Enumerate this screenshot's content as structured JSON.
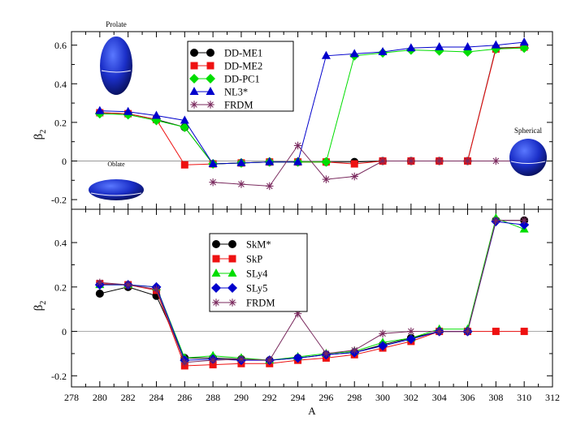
{
  "chart_data": [
    {
      "type": "line",
      "panel": "top",
      "ylabel_main": "β",
      "ylabel_sub": "2",
      "xlim": [
        278,
        312
      ],
      "ylim": [
        -0.25,
        0.67
      ],
      "yticks": [
        -0.2,
        0,
        0.2,
        0.4,
        0.6
      ],
      "ytick_labels": [
        "-0.2",
        "0",
        "0.2",
        "0.4",
        "0.6"
      ],
      "x": [
        280,
        282,
        284,
        286,
        288,
        290,
        292,
        294,
        296,
        298,
        300,
        302,
        304,
        306,
        308,
        310
      ],
      "series": [
        {
          "name": "DD-ME1",
          "color": "#000000",
          "marker": "circle",
          "values": [
            0.25,
            0.245,
            0.215,
            0.175,
            -0.015,
            -0.01,
            -0.005,
            -0.005,
            -0.005,
            -0.005,
            0,
            0,
            0,
            0,
            0.585,
            0.59
          ]
        },
        {
          "name": "DD-ME2",
          "color": "#ee1111",
          "marker": "square",
          "values": [
            0.25,
            0.245,
            0.215,
            -0.02,
            -0.015,
            -0.01,
            -0.005,
            -0.005,
            -0.005,
            -0.015,
            0,
            0,
            0,
            0,
            0.58,
            0.59
          ]
        },
        {
          "name": "DD-PC1",
          "color": "#00dd00",
          "marker": "diamond",
          "values": [
            0.245,
            0.24,
            0.21,
            0.175,
            -0.015,
            -0.01,
            -0.005,
            -0.005,
            -0.005,
            0.545,
            0.56,
            0.575,
            0.57,
            0.565,
            0.58,
            0.585
          ]
        },
        {
          "name": "NL3*",
          "color": "#0000cc",
          "marker": "triangle",
          "values": [
            0.26,
            0.255,
            0.235,
            0.21,
            -0.015,
            -0.01,
            -0.005,
            -0.005,
            0.545,
            0.555,
            0.565,
            0.585,
            0.59,
            0.59,
            0.6,
            0.615
          ]
        },
        {
          "name": "FRDM",
          "color": "#7a2a5e",
          "marker": "star",
          "x": [
            288,
            290,
            292,
            294,
            296,
            298,
            300,
            302,
            304,
            306,
            308,
            310
          ],
          "values": [
            -0.11,
            -0.12,
            -0.13,
            0.08,
            -0.095,
            -0.08,
            0,
            0,
            0,
            0,
            0,
            0
          ]
        }
      ],
      "annotations": {
        "prolate": "Prolate",
        "oblate": "Oblate",
        "spherical": "Spherical"
      }
    },
    {
      "type": "line",
      "panel": "bottom",
      "xlabel": "A",
      "ylabel_main": "β",
      "ylabel_sub": "2",
      "xlim": [
        278,
        312
      ],
      "ylim": [
        -0.25,
        0.55
      ],
      "xticks": [
        278,
        280,
        282,
        284,
        286,
        288,
        290,
        292,
        294,
        296,
        298,
        300,
        302,
        304,
        306,
        308,
        310,
        312
      ],
      "xtick_labels": [
        "278",
        "280",
        "282",
        "284",
        "286",
        "288",
        "290",
        "292",
        "294",
        "296",
        "298",
        "300",
        "302",
        "304",
        "306",
        "308",
        "310",
        "312"
      ],
      "yticks": [
        -0.2,
        0,
        0.2,
        0.4
      ],
      "ytick_labels": [
        "-0.2",
        "0",
        "0.2",
        "0.4"
      ],
      "x": [
        280,
        282,
        284,
        286,
        288,
        290,
        292,
        294,
        296,
        298,
        300,
        302,
        304,
        306,
        308,
        310
      ],
      "series": [
        {
          "name": "SkM*",
          "color": "#000000",
          "marker": "circle",
          "values": [
            0.17,
            0.2,
            0.16,
            -0.12,
            -0.12,
            -0.125,
            -0.13,
            -0.12,
            -0.105,
            -0.095,
            -0.06,
            -0.03,
            0,
            0,
            0.5,
            0.5
          ]
        },
        {
          "name": "SkP",
          "color": "#ee1111",
          "marker": "square",
          "values": [
            0.215,
            0.21,
            0.185,
            -0.155,
            -0.15,
            -0.145,
            -0.145,
            -0.13,
            -0.12,
            -0.105,
            -0.075,
            -0.045,
            0,
            0,
            0,
            0
          ]
        },
        {
          "name": "SLy4",
          "color": "#00dd00",
          "marker": "triangle",
          "values": [
            0.21,
            0.21,
            0.2,
            -0.12,
            -0.11,
            -0.12,
            -0.13,
            -0.115,
            -0.1,
            -0.09,
            -0.05,
            -0.03,
            0.01,
            0.01,
            0.51,
            0.46
          ]
        },
        {
          "name": "SLy5",
          "color": "#0000cc",
          "marker": "diamond",
          "values": [
            0.21,
            0.21,
            0.2,
            -0.13,
            -0.125,
            -0.13,
            -0.13,
            -0.12,
            -0.105,
            -0.095,
            -0.065,
            -0.035,
            0,
            0,
            0.495,
            0.48
          ]
        },
        {
          "name": "FRDM",
          "color": "#7a2a5e",
          "marker": "star",
          "values": [
            0.22,
            0.21,
            0.19,
            -0.14,
            -0.13,
            -0.125,
            -0.13,
            0.08,
            -0.1,
            -0.085,
            -0.01,
            0,
            0,
            0,
            0.5,
            0.5
          ]
        }
      ]
    }
  ]
}
